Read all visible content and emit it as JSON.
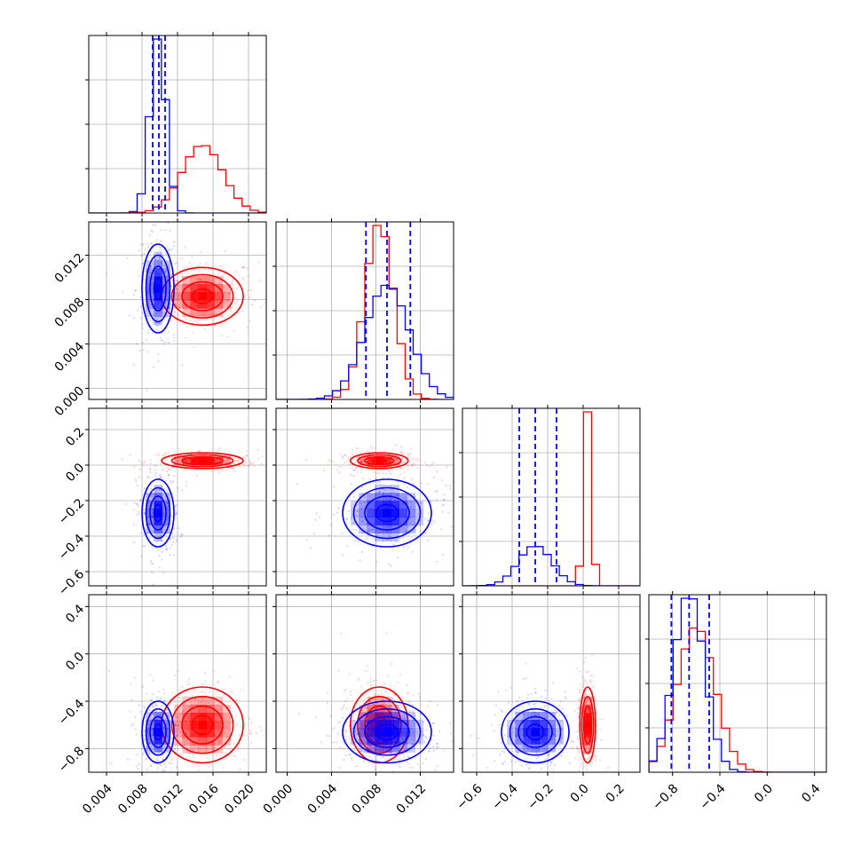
{
  "figure": {
    "type": "corner-plot"
  },
  "colors": {
    "series_a": "#ff0000",
    "series_b": "#0000ff",
    "grid": "#b0b0b0",
    "frame": "#000000"
  },
  "chart_data": {
    "type": "corner",
    "params": [
      {
        "range": [
          0.002,
          0.022
        ],
        "ticks": [
          0.004,
          0.008,
          0.012,
          0.016,
          0.02
        ],
        "ticklabels": [
          "0.004",
          "0.008",
          "0.012",
          "0.016",
          "0.020"
        ]
      },
      {
        "range": [
          -0.001,
          0.015
        ],
        "ticks": [
          0.0,
          0.004,
          0.008,
          0.012
        ],
        "ticklabels": [
          "0.000",
          "0.004",
          "0.008",
          "0.012"
        ]
      },
      {
        "range": [
          -0.68,
          0.32
        ],
        "ticks": [
          -0.6,
          -0.4,
          -0.2,
          0.0,
          0.2
        ],
        "ticklabels": [
          "−0.6",
          "−0.4",
          "−0.2",
          "0.0",
          "0.2"
        ]
      },
      {
        "range": [
          -1.0,
          0.5
        ],
        "ticks": [
          -0.8,
          -0.4,
          0.0,
          0.4
        ],
        "ticklabels": [
          "−0.8",
          "−0.4",
          "0.0",
          "0.4"
        ]
      }
    ],
    "series": [
      {
        "color": "#ff0000",
        "mean": [
          0.0148,
          0.0083,
          0.025,
          -0.6
        ],
        "sd": [
          0.0023,
          0.0013,
          0.022,
          0.16
        ]
      },
      {
        "color": "#0000ff",
        "mean": [
          0.0098,
          0.009,
          -0.27,
          -0.66
        ],
        "sd": [
          0.0009,
          0.002,
          0.095,
          0.13
        ]
      }
    ],
    "quantiles": {
      "color": "#0000ff",
      "values": [
        [
          0.0092,
          0.0099,
          0.0106
        ],
        [
          0.0071,
          0.009,
          0.0111
        ],
        [
          -0.36,
          -0.27,
          -0.15
        ],
        [
          -0.81,
          -0.66,
          -0.49
        ]
      ]
    },
    "grid": true
  }
}
